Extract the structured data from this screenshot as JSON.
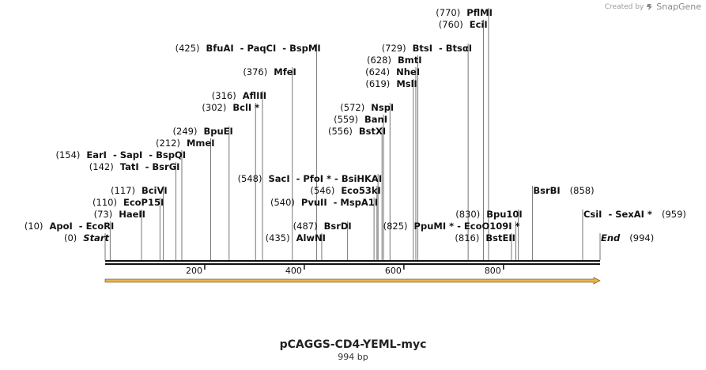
{
  "credit": {
    "prefix": "Created by",
    "brand": "SnapGene"
  },
  "map": {
    "title": "pCAGGS-CD4-YEML-myc",
    "length_label": "994 bp",
    "length": 994,
    "ticks": [
      {
        "label": "200",
        "pos": 200
      },
      {
        "label": "400",
        "pos": 400
      },
      {
        "label": "600",
        "pos": 600
      },
      {
        "label": "800",
        "pos": 800
      }
    ],
    "feature_arrow": {
      "start": 0,
      "end": 994,
      "color": "#e8b44a"
    },
    "labels": [
      {
        "pos": 0,
        "num": "(0)",
        "text": "Start",
        "italic": true,
        "side": "left",
        "row": 0
      },
      {
        "pos": 10,
        "num": "(10)",
        "text": "ApoI  - EcoRI",
        "side": "left",
        "row": 1
      },
      {
        "pos": 73,
        "num": "(73)",
        "text": "HaeII",
        "side": "left",
        "row": 2
      },
      {
        "pos": 110,
        "num": "(110)",
        "text": "EcoP15I",
        "side": "left",
        "row": 3
      },
      {
        "pos": 117,
        "num": "(117)",
        "text": "BciVI",
        "side": "left",
        "row": 4
      },
      {
        "pos": 142,
        "num": "(142)",
        "text": "TatI  - BsrGI",
        "side": "left",
        "row": 6
      },
      {
        "pos": 154,
        "num": "(154)",
        "text": "EarI  - SapI  - BspQI",
        "side": "left",
        "row": 7
      },
      {
        "pos": 212,
        "num": "(212)",
        "text": "MmeI",
        "side": "left",
        "row": 8
      },
      {
        "pos": 249,
        "num": "(249)",
        "text": "BpuEI",
        "side": "left",
        "row": 9
      },
      {
        "pos": 302,
        "num": "(302)",
        "text": "BclI *",
        "side": "left",
        "row": 11
      },
      {
        "pos": 316,
        "num": "(316)",
        "text": "AflIII",
        "side": "left",
        "row": 12
      },
      {
        "pos": 376,
        "num": "(376)",
        "text": "MfeI",
        "side": "left",
        "row": 14
      },
      {
        "pos": 425,
        "num": "(425)",
        "text": "BfuAI  - PaqCI  - BspMI",
        "side": "left",
        "row": 16
      },
      {
        "pos": 435,
        "num": "(435)",
        "text": "AlwNI",
        "side": "left",
        "row": 0
      },
      {
        "pos": 487,
        "num": "(487)",
        "text": "BsrDI",
        "side": "left",
        "row": 1
      },
      {
        "pos": 540,
        "num": "(540)",
        "text": "PvuII  - MspA1I",
        "side": "left",
        "row": 3
      },
      {
        "pos": 546,
        "num": "(546)",
        "text": "Eco53kI",
        "side": "left",
        "row": 4
      },
      {
        "pos": 548,
        "num": "(548)",
        "text": "SacI  - PfoI * - BsiHKAI",
        "side": "left",
        "row": 5
      },
      {
        "pos": 556,
        "num": "(556)",
        "text": "BstXI",
        "side": "left",
        "row": 9
      },
      {
        "pos": 559,
        "num": "(559)",
        "text": "BanI",
        "side": "left",
        "row": 10
      },
      {
        "pos": 572,
        "num": "(572)",
        "text": "NspI",
        "side": "left",
        "row": 11
      },
      {
        "pos": 619,
        "num": "(619)",
        "text": "MslI",
        "side": "left",
        "row": 13
      },
      {
        "pos": 624,
        "num": "(624)",
        "text": "NheI",
        "side": "left",
        "row": 14
      },
      {
        "pos": 628,
        "num": "(628)",
        "text": "BmtI",
        "side": "left",
        "row": 15
      },
      {
        "pos": 729,
        "num": "(729)",
        "text": "BtsI  - BtsαI",
        "side": "left",
        "row": 16
      },
      {
        "pos": 760,
        "num": "(760)",
        "text": "EciI",
        "side": "left",
        "row": 18
      },
      {
        "pos": 770,
        "num": "(770)",
        "text": "PflMI",
        "side": "left",
        "row": 19
      },
      {
        "pos": 816,
        "num": "(816)",
        "text": "BstEII",
        "side": "left",
        "row": 0
      },
      {
        "pos": 825,
        "num": "(825)",
        "text": "PpuMI * - EcoO109I *",
        "side": "left",
        "row": 1
      },
      {
        "pos": 830,
        "num": "(830)",
        "text": "Bpu10I",
        "side": "left",
        "row": 2
      },
      {
        "pos": 858,
        "num": "(858)",
        "text": "BsrBI",
        "side": "right",
        "row": 4
      },
      {
        "pos": 959,
        "num": "(959)",
        "text": "CsiI  - SexAI *",
        "side": "right",
        "row": 2
      },
      {
        "pos": 994,
        "num": "(994)",
        "text": "End",
        "italic": true,
        "side": "right",
        "row": 0
      }
    ]
  }
}
